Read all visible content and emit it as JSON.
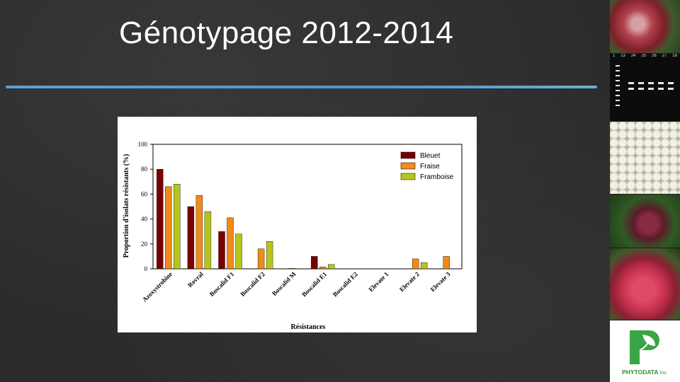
{
  "slide": {
    "title": "Génotypage 2012-2014"
  },
  "colors": {
    "accent_rule": "#5fa9d6",
    "bleuet": "#7a0000",
    "fraise": "#f08a1c",
    "framboise": "#b7c41c"
  },
  "chart_data": {
    "type": "bar",
    "title": "",
    "xlabel": "Résistances",
    "ylabel": "Proportion d'isolats résistants (%)",
    "ylim": [
      0,
      100
    ],
    "yticks": [
      0,
      20,
      40,
      60,
      80,
      100
    ],
    "grid": false,
    "legend_position": "top-right",
    "categories": [
      "Azoxystrobine",
      "Rovral",
      "Boscalid F1",
      "Boscalid F2",
      "Boscalid M",
      "Boscalid E1",
      "Boscalid E2",
      "Elevate 1",
      "Elevate 2",
      "Elevate 3"
    ],
    "series": [
      {
        "name": "Bleuet",
        "color": "#7a0000",
        "values": [
          80,
          50,
          30,
          0,
          0,
          10,
          0,
          0,
          0,
          0
        ]
      },
      {
        "name": "Fraise",
        "color": "#f08a1c",
        "values": [
          66,
          59,
          41,
          16,
          0.5,
          1.5,
          0,
          0,
          8,
          10
        ]
      },
      {
        "name": "Framboise",
        "color": "#b7c41c",
        "values": [
          68,
          46,
          28,
          22,
          0,
          3.5,
          0,
          0,
          5,
          0
        ]
      }
    ]
  },
  "sidebar": {
    "gel_lane_labels": [
      "1",
      "13",
      "24",
      "25",
      "26",
      "27",
      "18"
    ],
    "logo_name": "PHYTODATA",
    "logo_suffix": "Inc."
  }
}
